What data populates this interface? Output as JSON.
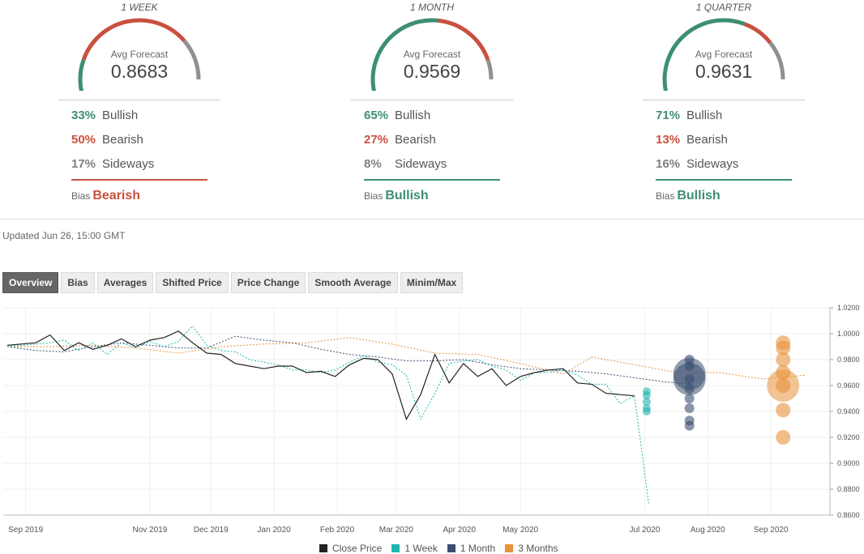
{
  "forecasts": [
    {
      "period": "1 WEEK",
      "avg_label": "Avg Forecast",
      "avg_value": "0.8683",
      "bullish_pct": "33%",
      "bullish_label": "Bullish",
      "bearish_pct": "50%",
      "bearish_label": "Bearish",
      "sideways_pct": "17%",
      "sideways_label": "Sideways",
      "bias_label": "Bias",
      "bias_value": "Bearish",
      "gauge_fractions": [
        0.33,
        0.5,
        0.17
      ]
    },
    {
      "period": "1 MONTH",
      "avg_label": "Avg Forecast",
      "avg_value": "0.9569",
      "bullish_pct": "65%",
      "bullish_label": "Bullish",
      "bearish_pct": "27%",
      "bearish_label": "Bearish",
      "sideways_pct": "8%",
      "sideways_label": "Sideways",
      "bias_label": "Bias",
      "bias_value": "Bullish",
      "gauge_fractions": [
        0.65,
        0.27,
        0.08
      ]
    },
    {
      "period": "1 QUARTER",
      "avg_label": "Avg Forecast",
      "avg_value": "0.9631",
      "bullish_pct": "71%",
      "bullish_label": "Bullish",
      "bearish_pct": "13%",
      "bearish_label": "Bearish",
      "sideways_pct": "16%",
      "sideways_label": "Sideways",
      "bias_label": "Bias",
      "bias_value": "Bullish",
      "gauge_fractions": [
        0.71,
        0.13,
        0.16
      ]
    }
  ],
  "colors": {
    "bullish": "#3d8f72",
    "bearish": "#c9503f",
    "sideways": "#909090"
  },
  "updated": "Updated Jun 26, 15:00 GMT",
  "tabs": [
    "Overview",
    "Bias",
    "Averages",
    "Shifted Price",
    "Price Change",
    "Smooth Average",
    "Minim/Max"
  ],
  "active_tab": "Overview",
  "chart_data": {
    "type": "line",
    "x_ticks": [
      {
        "label": "Sep 2019",
        "date": "2019-09-01"
      },
      {
        "label": "Nov 2019",
        "date": "2019-11-01"
      },
      {
        "label": "Dec 2019",
        "date": "2019-12-01"
      },
      {
        "label": "Jan 2020",
        "date": "2020-01-01"
      },
      {
        "label": "Feb 2020",
        "date": "2020-02-01"
      },
      {
        "label": "Mar 2020",
        "date": "2020-03-01"
      },
      {
        "label": "Apr 2020",
        "date": "2020-04-01"
      },
      {
        "label": "May 2020",
        "date": "2020-05-01"
      },
      {
        "label": "Jul 2020",
        "date": "2020-07-01"
      },
      {
        "label": "Aug 2020",
        "date": "2020-08-01"
      },
      {
        "label": "Sep 2020",
        "date": "2020-09-01"
      }
    ],
    "y_ticks": [
      "1.0200",
      "1.0000",
      "0.9800",
      "0.9600",
      "0.9400",
      "0.9200",
      "0.9000",
      "0.8800",
      "0.8600"
    ],
    "ylim": [
      0.86,
      1.02
    ],
    "xlim": [
      "2019-08-21",
      "2020-09-30"
    ],
    "legend": {
      "position": "bottom",
      "entries": [
        "Close Price",
        "1 Week",
        "1 Month",
        "3 Months"
      ]
    },
    "series": [
      {
        "name": "Close Price",
        "color": "#222222",
        "dash": false,
        "points": [
          [
            "2019-08-23",
            0.991
          ],
          [
            "2019-09-06",
            0.993
          ],
          [
            "2019-09-13",
            0.999
          ],
          [
            "2019-09-20",
            0.987
          ],
          [
            "2019-09-27",
            0.993
          ],
          [
            "2019-10-04",
            0.988
          ],
          [
            "2019-10-11",
            0.991
          ],
          [
            "2019-10-18",
            0.996
          ],
          [
            "2019-10-25",
            0.99
          ],
          [
            "2019-11-01",
            0.995
          ],
          [
            "2019-11-08",
            0.997
          ],
          [
            "2019-11-15",
            1.002
          ],
          [
            "2019-11-22",
            0.993
          ],
          [
            "2019-11-29",
            0.985
          ],
          [
            "2019-12-06",
            0.984
          ],
          [
            "2019-12-13",
            0.977
          ],
          [
            "2019-12-20",
            0.975
          ],
          [
            "2019-12-27",
            0.973
          ],
          [
            "2020-01-03",
            0.975
          ],
          [
            "2020-01-10",
            0.975
          ],
          [
            "2020-01-17",
            0.97
          ],
          [
            "2020-01-24",
            0.971
          ],
          [
            "2020-01-31",
            0.967
          ],
          [
            "2020-02-07",
            0.976
          ],
          [
            "2020-02-14",
            0.981
          ],
          [
            "2020-02-21",
            0.98
          ],
          [
            "2020-02-28",
            0.969
          ],
          [
            "2020-03-06",
            0.934
          ],
          [
            "2020-03-13",
            0.953
          ],
          [
            "2020-03-20",
            0.984
          ],
          [
            "2020-03-27",
            0.962
          ],
          [
            "2020-04-03",
            0.977
          ],
          [
            "2020-04-10",
            0.967
          ],
          [
            "2020-04-17",
            0.973
          ],
          [
            "2020-04-24",
            0.96
          ],
          [
            "2020-05-01",
            0.967
          ],
          [
            "2020-05-08",
            0.97
          ],
          [
            "2020-05-15",
            0.972
          ],
          [
            "2020-05-22",
            0.973
          ],
          [
            "2020-05-29",
            0.962
          ],
          [
            "2020-06-05",
            0.961
          ],
          [
            "2020-06-12",
            0.954
          ],
          [
            "2020-06-19",
            0.953
          ],
          [
            "2020-06-26",
            0.952
          ]
        ]
      },
      {
        "name": "1 Week",
        "color": "#1fb5b0",
        "dash": true,
        "points": [
          [
            "2019-08-23",
            0.99
          ],
          [
            "2019-09-06",
            0.992
          ],
          [
            "2019-09-13",
            0.993
          ],
          [
            "2019-09-20",
            0.995
          ],
          [
            "2019-09-27",
            0.987
          ],
          [
            "2019-10-04",
            0.993
          ],
          [
            "2019-10-11",
            0.984
          ],
          [
            "2019-10-18",
            0.993
          ],
          [
            "2019-10-25",
            0.989
          ],
          [
            "2019-11-01",
            0.994
          ],
          [
            "2019-11-08",
            0.99
          ],
          [
            "2019-11-15",
            0.994
          ],
          [
            "2019-11-22",
            1.006
          ],
          [
            "2019-11-29",
            0.991
          ],
          [
            "2019-12-06",
            0.987
          ],
          [
            "2019-12-13",
            0.986
          ],
          [
            "2019-12-20",
            0.98
          ],
          [
            "2019-12-27",
            0.978
          ],
          [
            "2020-01-03",
            0.976
          ],
          [
            "2020-01-10",
            0.972
          ],
          [
            "2020-01-17",
            0.972
          ],
          [
            "2020-01-24",
            0.97
          ],
          [
            "2020-01-31",
            0.972
          ],
          [
            "2020-02-07",
            0.978
          ],
          [
            "2020-02-14",
            0.983
          ],
          [
            "2020-02-21",
            0.978
          ],
          [
            "2020-02-28",
            0.976
          ],
          [
            "2020-03-06",
            0.968
          ],
          [
            "2020-03-13",
            0.934
          ],
          [
            "2020-03-20",
            0.954
          ],
          [
            "2020-03-27",
            0.977
          ],
          [
            "2020-04-03",
            0.979
          ],
          [
            "2020-04-10",
            0.98
          ],
          [
            "2020-04-17",
            0.975
          ],
          [
            "2020-04-24",
            0.972
          ],
          [
            "2020-05-01",
            0.964
          ],
          [
            "2020-05-08",
            0.97
          ],
          [
            "2020-05-15",
            0.97
          ],
          [
            "2020-05-22",
            0.972
          ],
          [
            "2020-05-29",
            0.968
          ],
          [
            "2020-06-05",
            0.961
          ],
          [
            "2020-06-12",
            0.961
          ],
          [
            "2020-06-19",
            0.946
          ],
          [
            "2020-06-26",
            0.952
          ],
          [
            "2020-07-03",
            0.869
          ]
        ]
      },
      {
        "name": "1 Month",
        "color": "#3a4e70",
        "dash": true,
        "points": [
          [
            "2019-08-23",
            0.99
          ],
          [
            "2019-09-06",
            0.987
          ],
          [
            "2019-09-20",
            0.986
          ],
          [
            "2019-10-04",
            0.99
          ],
          [
            "2019-10-18",
            0.993
          ],
          [
            "2019-11-01",
            0.991
          ],
          [
            "2019-11-15",
            0.989
          ],
          [
            "2019-11-29",
            0.989
          ],
          [
            "2019-12-13",
            0.998
          ],
          [
            "2019-12-27",
            0.995
          ],
          [
            "2020-01-10",
            0.993
          ],
          [
            "2020-01-24",
            0.988
          ],
          [
            "2020-02-07",
            0.984
          ],
          [
            "2020-02-21",
            0.982
          ],
          [
            "2020-03-06",
            0.979
          ],
          [
            "2020-03-20",
            0.979
          ],
          [
            "2020-04-03",
            0.98
          ],
          [
            "2020-04-17",
            0.976
          ],
          [
            "2020-05-01",
            0.973
          ],
          [
            "2020-05-15",
            0.972
          ],
          [
            "2020-05-29",
            0.971
          ],
          [
            "2020-06-12",
            0.969
          ],
          [
            "2020-06-26",
            0.966
          ],
          [
            "2020-07-10",
            0.963
          ],
          [
            "2020-07-24",
            0.961
          ]
        ]
      },
      {
        "name": "3 Months",
        "color": "#e8923a",
        "dash": true,
        "points": [
          [
            "2019-08-23",
            0.99
          ],
          [
            "2019-09-13",
            0.99
          ],
          [
            "2019-10-04",
            0.991
          ],
          [
            "2019-10-25",
            0.989
          ],
          [
            "2019-11-15",
            0.985
          ],
          [
            "2019-12-06",
            0.99
          ],
          [
            "2019-12-27",
            0.992
          ],
          [
            "2020-01-17",
            0.993
          ],
          [
            "2020-02-07",
            0.997
          ],
          [
            "2020-02-28",
            0.992
          ],
          [
            "2020-03-20",
            0.985
          ],
          [
            "2020-04-10",
            0.984
          ],
          [
            "2020-05-01",
            0.977
          ],
          [
            "2020-05-22",
            0.969
          ],
          [
            "2020-06-05",
            0.982
          ],
          [
            "2020-06-26",
            0.976
          ],
          [
            "2020-07-17",
            0.97
          ],
          [
            "2020-08-07",
            0.97
          ],
          [
            "2020-08-28",
            0.965
          ],
          [
            "2020-09-18",
            0.968
          ]
        ]
      }
    ],
    "bubbles": [
      {
        "series": "1 Week",
        "date": "2020-07-02",
        "values": [
          0.9555,
          0.9525,
          0.9475,
          0.9425,
          0.94
        ],
        "weight": 1
      },
      {
        "series": "1 Month",
        "date": "2020-07-23",
        "values": [
          0.98,
          0.975,
          0.965,
          0.9575,
          0.95,
          0.9425,
          0.933,
          0.929
        ],
        "weight": 1,
        "large": [
          0.969,
          0.965
        ]
      },
      {
        "series": "3 Months",
        "date": "2020-09-07",
        "values": [
          0.993,
          0.989,
          0.98,
          0.97,
          0.96,
          0.941,
          0.92
        ],
        "weight": 1,
        "large": [
          0.96
        ]
      }
    ]
  }
}
